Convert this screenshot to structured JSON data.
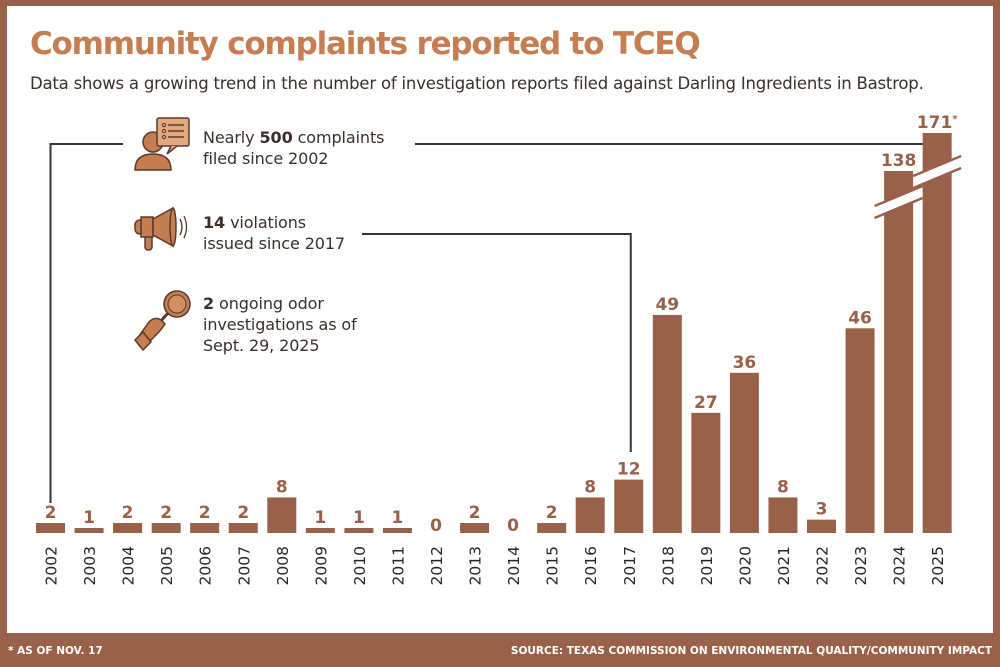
{
  "header": {
    "title": "Community complaints reported to TCEQ",
    "subtitle": "Data shows a growing trend in the number of investigation reports filed against Darling Ingredients in Bastrop."
  },
  "callouts": [
    {
      "icon": "person-speech-bubble-icon",
      "bold": "500",
      "before": "Nearly ",
      "after": " complaints",
      "line2": "filed since 2002"
    },
    {
      "icon": "megaphone-icon",
      "bold": "14",
      "before": "",
      "after": " violations",
      "line2": "issued since 2017"
    },
    {
      "icon": "hand-magnifying-glass-icon",
      "bold": "2",
      "before": "",
      "after": " ongoing odor",
      "line2": "investigations as of",
      "line3": "Sept. 29, 2025"
    }
  ],
  "footer": {
    "note": "* AS OF NOV. 17",
    "source": "SOURCE: TEXAS COMMISSION ON ENVIRONMENTAL QUALITY/COMMUNITY IMPACT"
  },
  "colors": {
    "bar": "#9a614a",
    "title": "#c57d51",
    "text": "#3a2f2b",
    "frame": "#9a614a",
    "connector": "#3a3533"
  },
  "chart_data": {
    "type": "bar",
    "title": "Community complaints reported to TCEQ",
    "xlabel": "",
    "ylabel": "",
    "categories": [
      "2002",
      "2003",
      "2004",
      "2005",
      "2006",
      "2007",
      "2008",
      "2009",
      "2010",
      "2011",
      "2012",
      "2013",
      "2014",
      "2015",
      "2016",
      "2017",
      "2018",
      "2019",
      "2020",
      "2021",
      "2022",
      "2023",
      "2024",
      "2025"
    ],
    "values": [
      2,
      1,
      2,
      2,
      2,
      2,
      8,
      1,
      1,
      1,
      0,
      2,
      0,
      2,
      8,
      12,
      49,
      27,
      36,
      8,
      3,
      46,
      138,
      171
    ],
    "data_labels": [
      "2",
      "1",
      "2",
      "2",
      "2",
      "2",
      "8",
      "1",
      "1",
      "1",
      "0",
      "2",
      "0",
      "2",
      "8",
      "12",
      "49",
      "27",
      "36",
      "8",
      "3",
      "46",
      "138",
      "171*"
    ],
    "broken_axis_bars": [
      "2024",
      "2025"
    ],
    "ylim": [
      0,
      60
    ],
    "grid": false,
    "annotations": [
      {
        "text": "Nearly 500 complaints filed since 2002",
        "connects": [
          "2002",
          "2025"
        ]
      },
      {
        "text": "14 violations issued since 2017",
        "connects": [
          "2017"
        ]
      },
      {
        "text": "2 ongoing odor investigations as of Sept. 29, 2025"
      }
    ]
  }
}
